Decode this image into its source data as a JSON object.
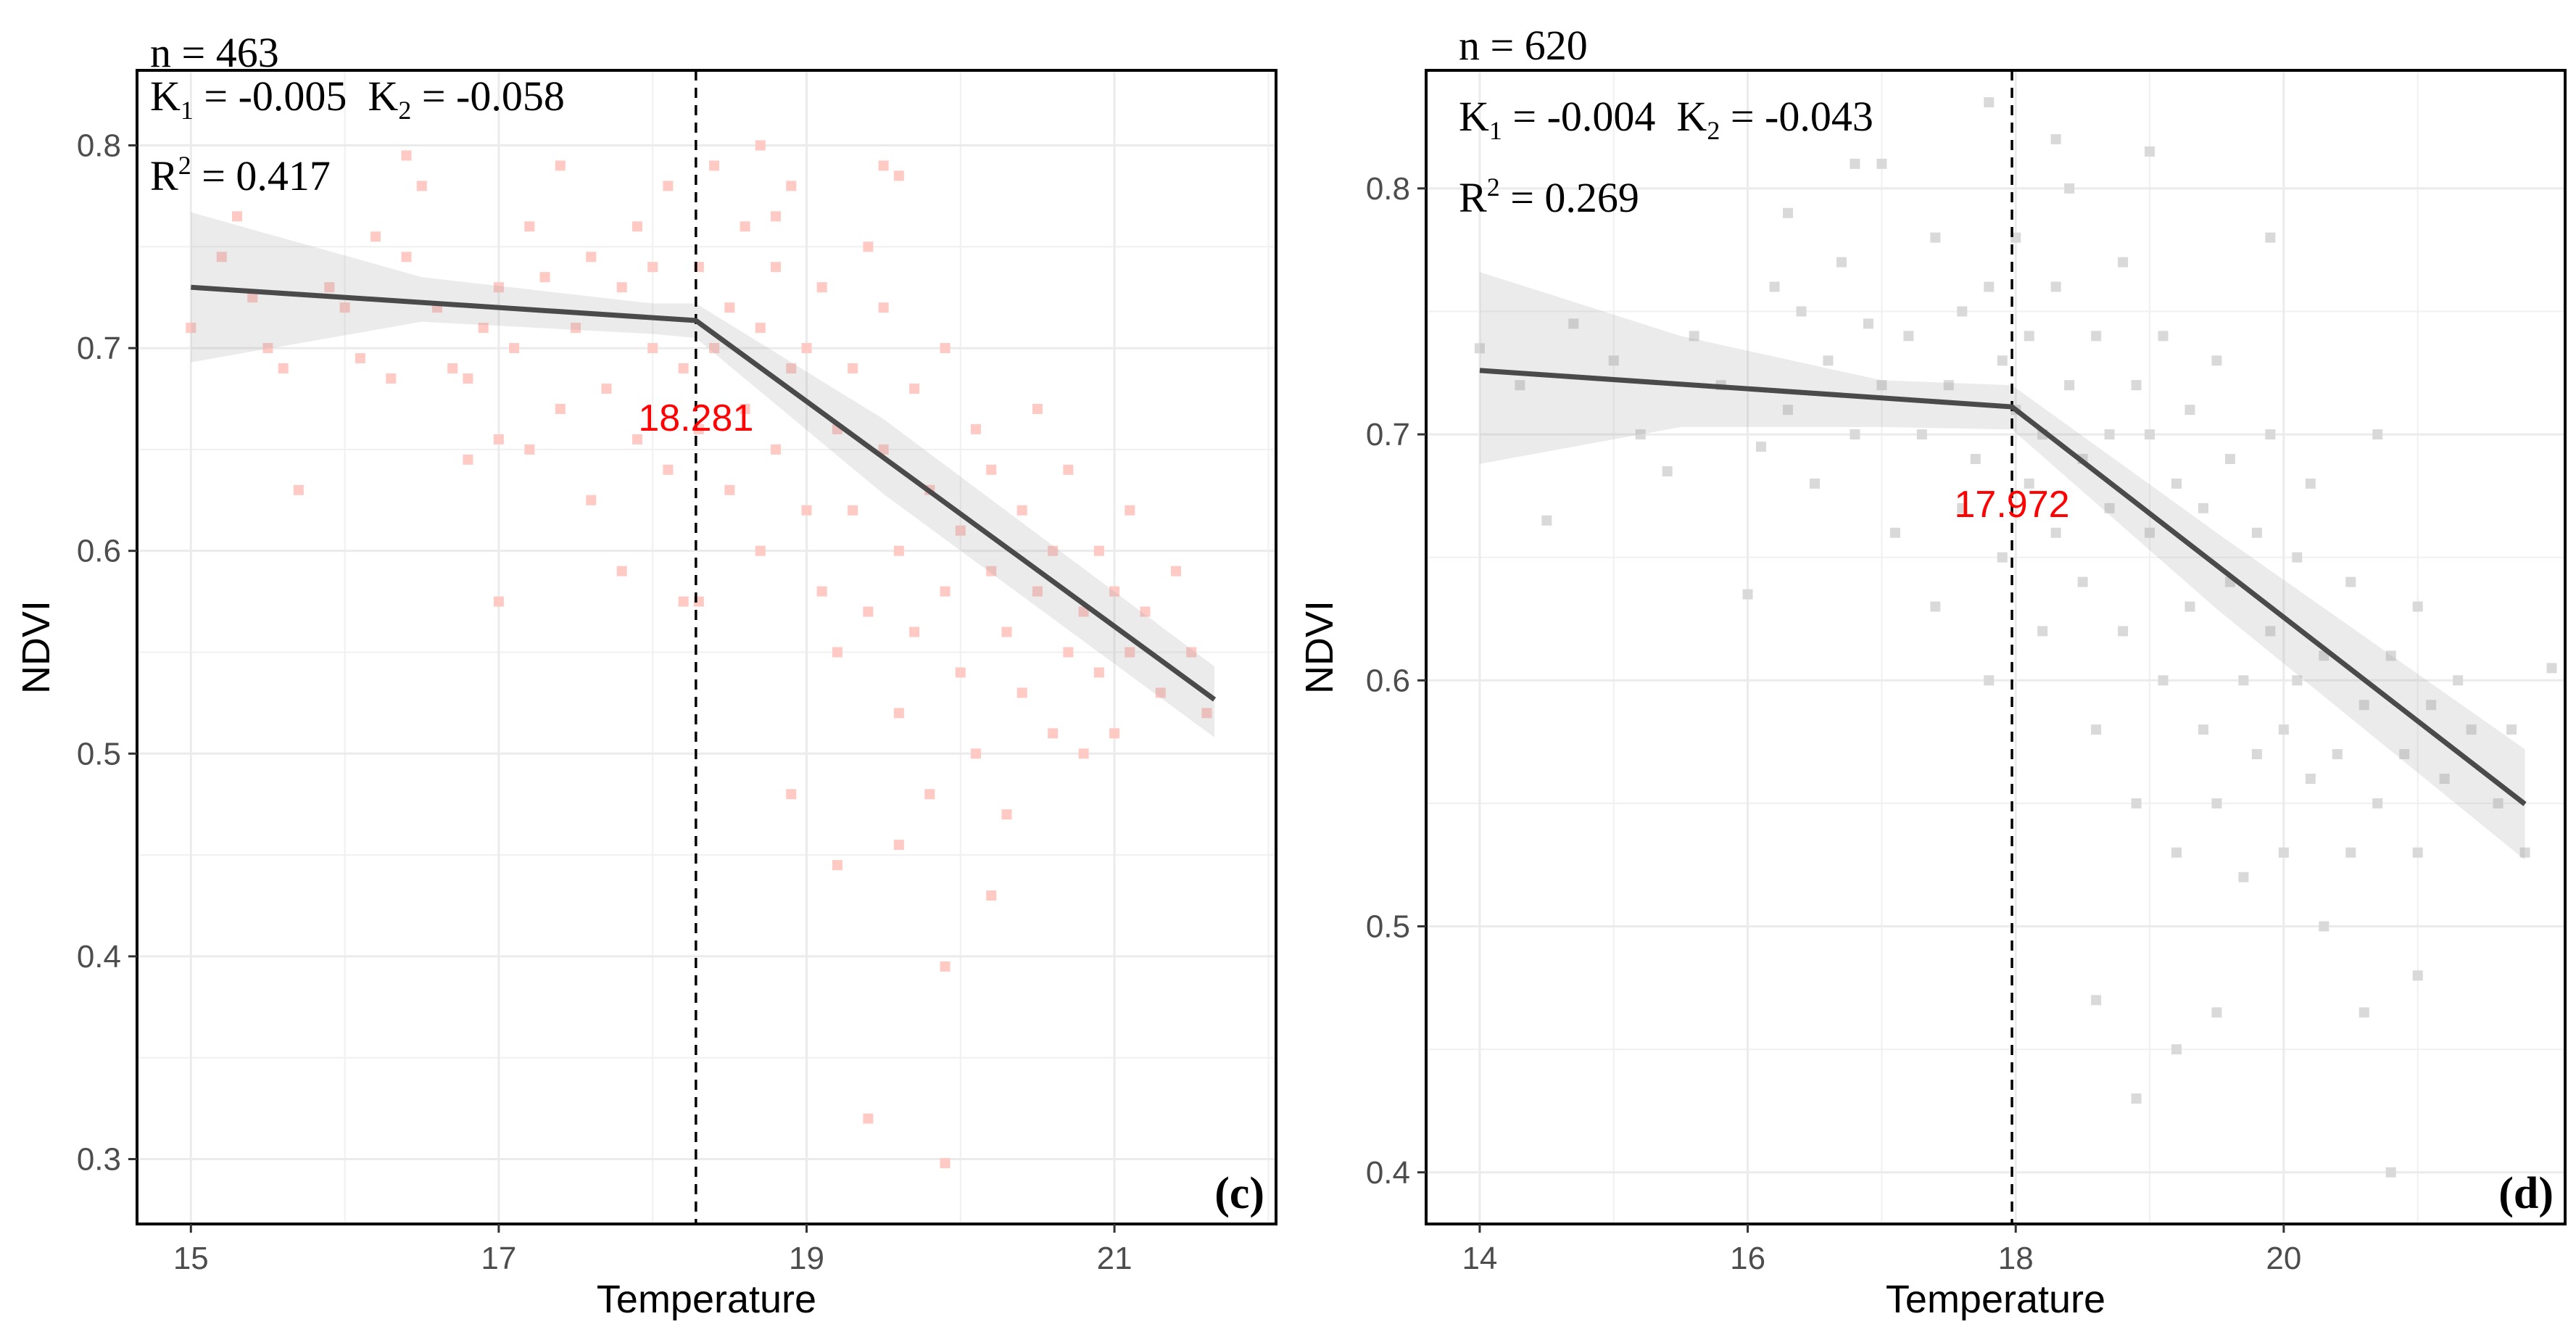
{
  "chart_data": [
    {
      "type": "scatter",
      "panel_label": "(c)",
      "n_text": "n = 463",
      "k1_text": "K",
      "k1_sub": "1",
      "k1_value": " = -0.005",
      "k2_text": "K",
      "k2_sub": "2",
      "k2_value": " = -0.058",
      "r2_text": "R",
      "r2_sup": "2",
      "r2_value": " = 0.417",
      "breakpoint": 18.281,
      "breakpoint_label": "18.281",
      "xlabel": "Temperature",
      "ylabel": "NDVI",
      "xlim": [
        14.65,
        22.05
      ],
      "ylim": [
        0.268,
        0.837
      ],
      "xticks": [
        15,
        17,
        19,
        21
      ],
      "xtick_labels": [
        "15",
        "17",
        "19",
        "21"
      ],
      "yticks": [
        0.3,
        0.4,
        0.5,
        0.6,
        0.7,
        0.8
      ],
      "ytick_labels": [
        "0.3",
        "0.4",
        "0.5",
        "0.6",
        "0.7",
        "0.8"
      ],
      "point_color": "#ffc9c4",
      "fit": {
        "x": [
          15.0,
          18.281,
          21.65
        ],
        "y": [
          0.73,
          0.7136,
          0.5267
        ]
      },
      "ci_upper": {
        "x": [
          15.0,
          16.5,
          18.0,
          18.281,
          19.5,
          21.65
        ],
        "y": [
          0.767,
          0.735,
          0.722,
          0.722,
          0.665,
          0.543
        ]
      },
      "ci_lower": {
        "x": [
          15.0,
          16.5,
          18.0,
          18.281,
          19.5,
          21.65
        ],
        "y": [
          0.693,
          0.713,
          0.707,
          0.705,
          0.628,
          0.508
        ]
      },
      "points": [
        [
          15.0,
          0.71
        ],
        [
          15.2,
          0.745
        ],
        [
          15.4,
          0.725
        ],
        [
          15.5,
          0.7
        ],
        [
          15.6,
          0.69
        ],
        [
          15.7,
          0.63
        ],
        [
          15.9,
          0.73
        ],
        [
          16.0,
          0.72
        ],
        [
          16.1,
          0.695
        ],
        [
          16.2,
          0.755
        ],
        [
          16.3,
          0.685
        ],
        [
          16.4,
          0.745
        ],
        [
          16.5,
          0.78
        ],
        [
          16.6,
          0.72
        ],
        [
          16.7,
          0.69
        ],
        [
          16.8,
          0.685
        ],
        [
          16.9,
          0.71
        ],
        [
          17.0,
          0.73
        ],
        [
          17.0,
          0.655
        ],
        [
          17.1,
          0.7
        ],
        [
          17.2,
          0.76
        ],
        [
          17.2,
          0.65
        ],
        [
          17.3,
          0.735
        ],
        [
          17.4,
          0.79
        ],
        [
          17.4,
          0.67
        ],
        [
          17.5,
          0.71
        ],
        [
          17.6,
          0.745
        ],
        [
          17.6,
          0.625
        ],
        [
          17.7,
          0.68
        ],
        [
          17.8,
          0.73
        ],
        [
          17.8,
          0.59
        ],
        [
          17.9,
          0.76
        ],
        [
          17.9,
          0.655
        ],
        [
          18.0,
          0.7
        ],
        [
          18.0,
          0.74
        ],
        [
          18.1,
          0.64
        ],
        [
          18.1,
          0.78
        ],
        [
          18.2,
          0.69
        ],
        [
          18.2,
          0.575
        ],
        [
          18.3,
          0.74
        ],
        [
          18.3,
          0.66
        ],
        [
          18.4,
          0.7
        ],
        [
          18.4,
          0.79
        ],
        [
          18.5,
          0.63
        ],
        [
          18.5,
          0.72
        ],
        [
          18.6,
          0.67
        ],
        [
          18.6,
          0.76
        ],
        [
          18.7,
          0.6
        ],
        [
          18.7,
          0.71
        ],
        [
          18.8,
          0.74
        ],
        [
          18.8,
          0.65
        ],
        [
          18.9,
          0.69
        ],
        [
          18.9,
          0.78
        ],
        [
          19.0,
          0.62
        ],
        [
          19.0,
          0.7
        ],
        [
          19.1,
          0.58
        ],
        [
          19.1,
          0.73
        ],
        [
          19.2,
          0.66
        ],
        [
          19.2,
          0.55
        ],
        [
          19.3,
          0.69
        ],
        [
          19.3,
          0.62
        ],
        [
          19.4,
          0.75
        ],
        [
          19.4,
          0.57
        ],
        [
          19.5,
          0.65
        ],
        [
          19.5,
          0.72
        ],
        [
          19.6,
          0.6
        ],
        [
          19.6,
          0.52
        ],
        [
          19.7,
          0.68
        ],
        [
          19.7,
          0.56
        ],
        [
          19.8,
          0.63
        ],
        [
          19.8,
          0.48
        ],
        [
          19.9,
          0.7
        ],
        [
          19.9,
          0.58
        ],
        [
          20.0,
          0.61
        ],
        [
          20.0,
          0.54
        ],
        [
          20.1,
          0.66
        ],
        [
          20.1,
          0.5
        ],
        [
          20.2,
          0.59
        ],
        [
          20.2,
          0.64
        ],
        [
          20.3,
          0.56
        ],
        [
          20.3,
          0.47
        ],
        [
          20.4,
          0.62
        ],
        [
          20.4,
          0.53
        ],
        [
          20.5,
          0.67
        ],
        [
          20.5,
          0.58
        ],
        [
          20.6,
          0.51
        ],
        [
          20.6,
          0.6
        ],
        [
          20.7,
          0.55
        ],
        [
          20.7,
          0.64
        ],
        [
          20.8,
          0.57
        ],
        [
          20.8,
          0.5
        ],
        [
          20.9,
          0.6
        ],
        [
          20.9,
          0.54
        ],
        [
          21.0,
          0.58
        ],
        [
          21.0,
          0.51
        ],
        [
          21.1,
          0.62
        ],
        [
          21.1,
          0.55
        ],
        [
          21.2,
          0.57
        ],
        [
          21.3,
          0.53
        ],
        [
          21.4,
          0.59
        ],
        [
          21.5,
          0.55
        ],
        [
          21.6,
          0.52
        ],
        [
          19.9,
          0.395
        ],
        [
          19.4,
          0.32
        ],
        [
          19.9,
          0.298
        ],
        [
          18.9,
          0.48
        ],
        [
          19.2,
          0.445
        ],
        [
          19.6,
          0.455
        ],
        [
          20.2,
          0.43
        ],
        [
          17.0,
          0.575
        ],
        [
          18.3,
          0.575
        ],
        [
          16.8,
          0.645
        ],
        [
          15.3,
          0.765
        ],
        [
          16.4,
          0.795
        ],
        [
          18.7,
          0.8
        ],
        [
          19.5,
          0.79
        ],
        [
          19.6,
          0.785
        ],
        [
          18.8,
          0.765
        ]
      ]
    },
    {
      "type": "scatter",
      "panel_label": "(d)",
      "n_text": "n = 620",
      "k1_text": "K",
      "k1_sub": "1",
      "k1_value": " = -0.004",
      "k2_text": "K",
      "k2_sub": "2",
      "k2_value": " = -0.043",
      "r2_text": "R",
      "r2_sup": "2",
      "r2_value": " = 0.269",
      "breakpoint": 17.972,
      "breakpoint_label": "17.972",
      "xlabel": "Temperature",
      "ylabel": "NDVI",
      "xlim": [
        13.6,
        22.1
      ],
      "ylim": [
        0.379,
        0.848
      ],
      "xticks": [
        14,
        16,
        18,
        20
      ],
      "xtick_labels": [
        "14",
        "16",
        "18",
        "20"
      ],
      "yticks": [
        0.4,
        0.5,
        0.6,
        0.7,
        0.8
      ],
      "ytick_labels": [
        "0.4",
        "0.5",
        "0.6",
        "0.7",
        "0.8"
      ],
      "point_color": "#d9d9d9",
      "fit": {
        "x": [
          14.0,
          17.972,
          21.8
        ],
        "y": [
          0.726,
          0.7112,
          0.5497
        ]
      },
      "ci_upper": {
        "x": [
          14.0,
          15.5,
          17.0,
          17.972,
          19.5,
          21.8
        ],
        "y": [
          0.766,
          0.74,
          0.722,
          0.72,
          0.66,
          0.572
        ]
      },
      "ci_lower": {
        "x": [
          14.0,
          15.5,
          17.0,
          17.972,
          19.5,
          21.8
        ],
        "y": [
          0.688,
          0.703,
          0.703,
          0.702,
          0.629,
          0.527
        ]
      },
      "points": [
        [
          14.0,
          0.735
        ],
        [
          14.3,
          0.72
        ],
        [
          14.5,
          0.665
        ],
        [
          14.7,
          0.745
        ],
        [
          15.0,
          0.73
        ],
        [
          15.2,
          0.7
        ],
        [
          15.4,
          0.685
        ],
        [
          15.6,
          0.74
        ],
        [
          15.8,
          0.72
        ],
        [
          16.0,
          0.635
        ],
        [
          16.1,
          0.695
        ],
        [
          16.2,
          0.76
        ],
        [
          16.3,
          0.71
        ],
        [
          16.4,
          0.75
        ],
        [
          16.5,
          0.68
        ],
        [
          16.6,
          0.73
        ],
        [
          16.7,
          0.77
        ],
        [
          16.8,
          0.7
        ],
        [
          16.9,
          0.745
        ],
        [
          17.0,
          0.72
        ],
        [
          17.0,
          0.81
        ],
        [
          17.1,
          0.66
        ],
        [
          17.2,
          0.74
        ],
        [
          17.3,
          0.7
        ],
        [
          17.4,
          0.78
        ],
        [
          17.4,
          0.63
        ],
        [
          17.5,
          0.72
        ],
        [
          17.6,
          0.75
        ],
        [
          17.6,
          0.67
        ],
        [
          17.7,
          0.69
        ],
        [
          17.8,
          0.76
        ],
        [
          17.8,
          0.6
        ],
        [
          17.9,
          0.73
        ],
        [
          17.9,
          0.65
        ],
        [
          18.0,
          0.71
        ],
        [
          18.0,
          0.78
        ],
        [
          18.1,
          0.68
        ],
        [
          18.1,
          0.74
        ],
        [
          18.2,
          0.62
        ],
        [
          18.2,
          0.7
        ],
        [
          18.3,
          0.76
        ],
        [
          18.3,
          0.66
        ],
        [
          18.4,
          0.72
        ],
        [
          18.4,
          0.8
        ],
        [
          18.5,
          0.69
        ],
        [
          18.5,
          0.64
        ],
        [
          18.6,
          0.74
        ],
        [
          18.6,
          0.58
        ],
        [
          18.7,
          0.7
        ],
        [
          18.7,
          0.67
        ],
        [
          18.8,
          0.77
        ],
        [
          18.8,
          0.62
        ],
        [
          18.9,
          0.72
        ],
        [
          18.9,
          0.55
        ],
        [
          19.0,
          0.7
        ],
        [
          19.0,
          0.66
        ],
        [
          19.1,
          0.74
        ],
        [
          19.1,
          0.6
        ],
        [
          19.2,
          0.68
        ],
        [
          19.2,
          0.53
        ],
        [
          19.3,
          0.71
        ],
        [
          19.3,
          0.63
        ],
        [
          19.4,
          0.58
        ],
        [
          19.4,
          0.67
        ],
        [
          19.5,
          0.73
        ],
        [
          19.5,
          0.55
        ],
        [
          19.6,
          0.64
        ],
        [
          19.6,
          0.69
        ],
        [
          19.7,
          0.6
        ],
        [
          19.7,
          0.52
        ],
        [
          19.8,
          0.66
        ],
        [
          19.8,
          0.57
        ],
        [
          19.9,
          0.62
        ],
        [
          19.9,
          0.7
        ],
        [
          20.0,
          0.58
        ],
        [
          20.0,
          0.53
        ],
        [
          20.1,
          0.65
        ],
        [
          20.1,
          0.6
        ],
        [
          20.2,
          0.56
        ],
        [
          20.2,
          0.68
        ],
        [
          20.3,
          0.61
        ],
        [
          20.3,
          0.5
        ],
        [
          20.4,
          0.57
        ],
        [
          20.5,
          0.64
        ],
        [
          20.5,
          0.53
        ],
        [
          20.6,
          0.59
        ],
        [
          20.7,
          0.55
        ],
        [
          20.7,
          0.7
        ],
        [
          20.8,
          0.61
        ],
        [
          20.9,
          0.57
        ],
        [
          21.0,
          0.53
        ],
        [
          21.0,
          0.63
        ],
        [
          21.1,
          0.59
        ],
        [
          21.2,
          0.56
        ],
        [
          21.3,
          0.6
        ],
        [
          21.4,
          0.58
        ],
        [
          21.6,
          0.55
        ],
        [
          21.8,
          0.53
        ],
        [
          22.0,
          0.605
        ],
        [
          21.7,
          0.58
        ],
        [
          20.6,
          0.465
        ],
        [
          20.8,
          0.4
        ],
        [
          21.0,
          0.48
        ],
        [
          19.2,
          0.45
        ],
        [
          18.6,
          0.47
        ],
        [
          18.9,
          0.43
        ],
        [
          19.5,
          0.465
        ],
        [
          18.3,
          0.82
        ],
        [
          19.0,
          0.815
        ],
        [
          17.8,
          0.835
        ],
        [
          16.8,
          0.81
        ],
        [
          16.3,
          0.79
        ],
        [
          19.9,
          0.78
        ]
      ]
    }
  ]
}
